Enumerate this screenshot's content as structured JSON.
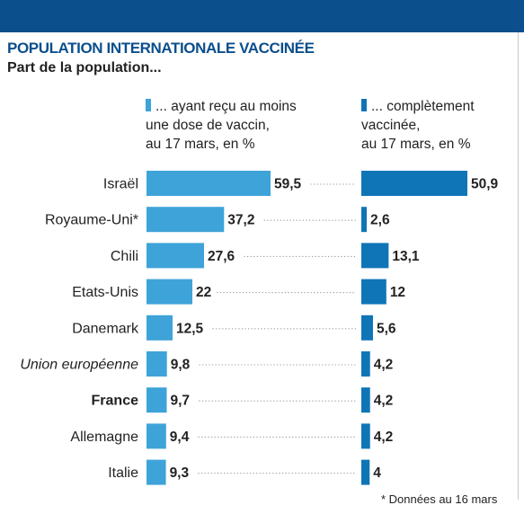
{
  "header": {
    "title": "POPULATION INTERNATIONALE VACCINÉE",
    "subtitle": "Part de la population..."
  },
  "legend": {
    "series1": [
      "... ayant reçu au moins",
      "une dose de vaccin,",
      "au 17 mars, en %"
    ],
    "series2": [
      "... complètement",
      "vaccinée,",
      "au 17 mars, en %"
    ]
  },
  "footnote": "* Données au 16 mars",
  "colors": {
    "header_bar": "#0b4f8c",
    "title": "#0b4f8c",
    "series1": "#3ea3d8",
    "series2": "#0f75b7",
    "dots": "#9a9a9a"
  },
  "chart_data": {
    "type": "bar",
    "orientation": "horizontal",
    "categories": [
      "Israël",
      "Royaume-Uni*",
      "Chili",
      "Etats-Unis",
      "Danemark",
      "Union européenne",
      "France",
      "Allemagne",
      "Italie"
    ],
    "category_styles": [
      "normal",
      "normal",
      "normal",
      "normal",
      "normal",
      "italic",
      "bold",
      "normal",
      "normal"
    ],
    "series": [
      {
        "values": [
          59.5,
          37.2,
          27.6,
          22,
          12.5,
          9.8,
          9.7,
          9.4,
          9.3
        ],
        "labels": [
          "59,5",
          "37,2",
          "27,6",
          "22",
          "12,5",
          "9,8",
          "9,7",
          "9,4",
          "9,3"
        ]
      },
      {
        "values": [
          50.9,
          2.6,
          13.1,
          12,
          5.6,
          4.2,
          4.2,
          4.2,
          4
        ],
        "labels": [
          "50,9",
          "2,6",
          "13,1",
          "12",
          "5,6",
          "4,2",
          "4,2",
          "4,2",
          "4"
        ]
      }
    ]
  }
}
